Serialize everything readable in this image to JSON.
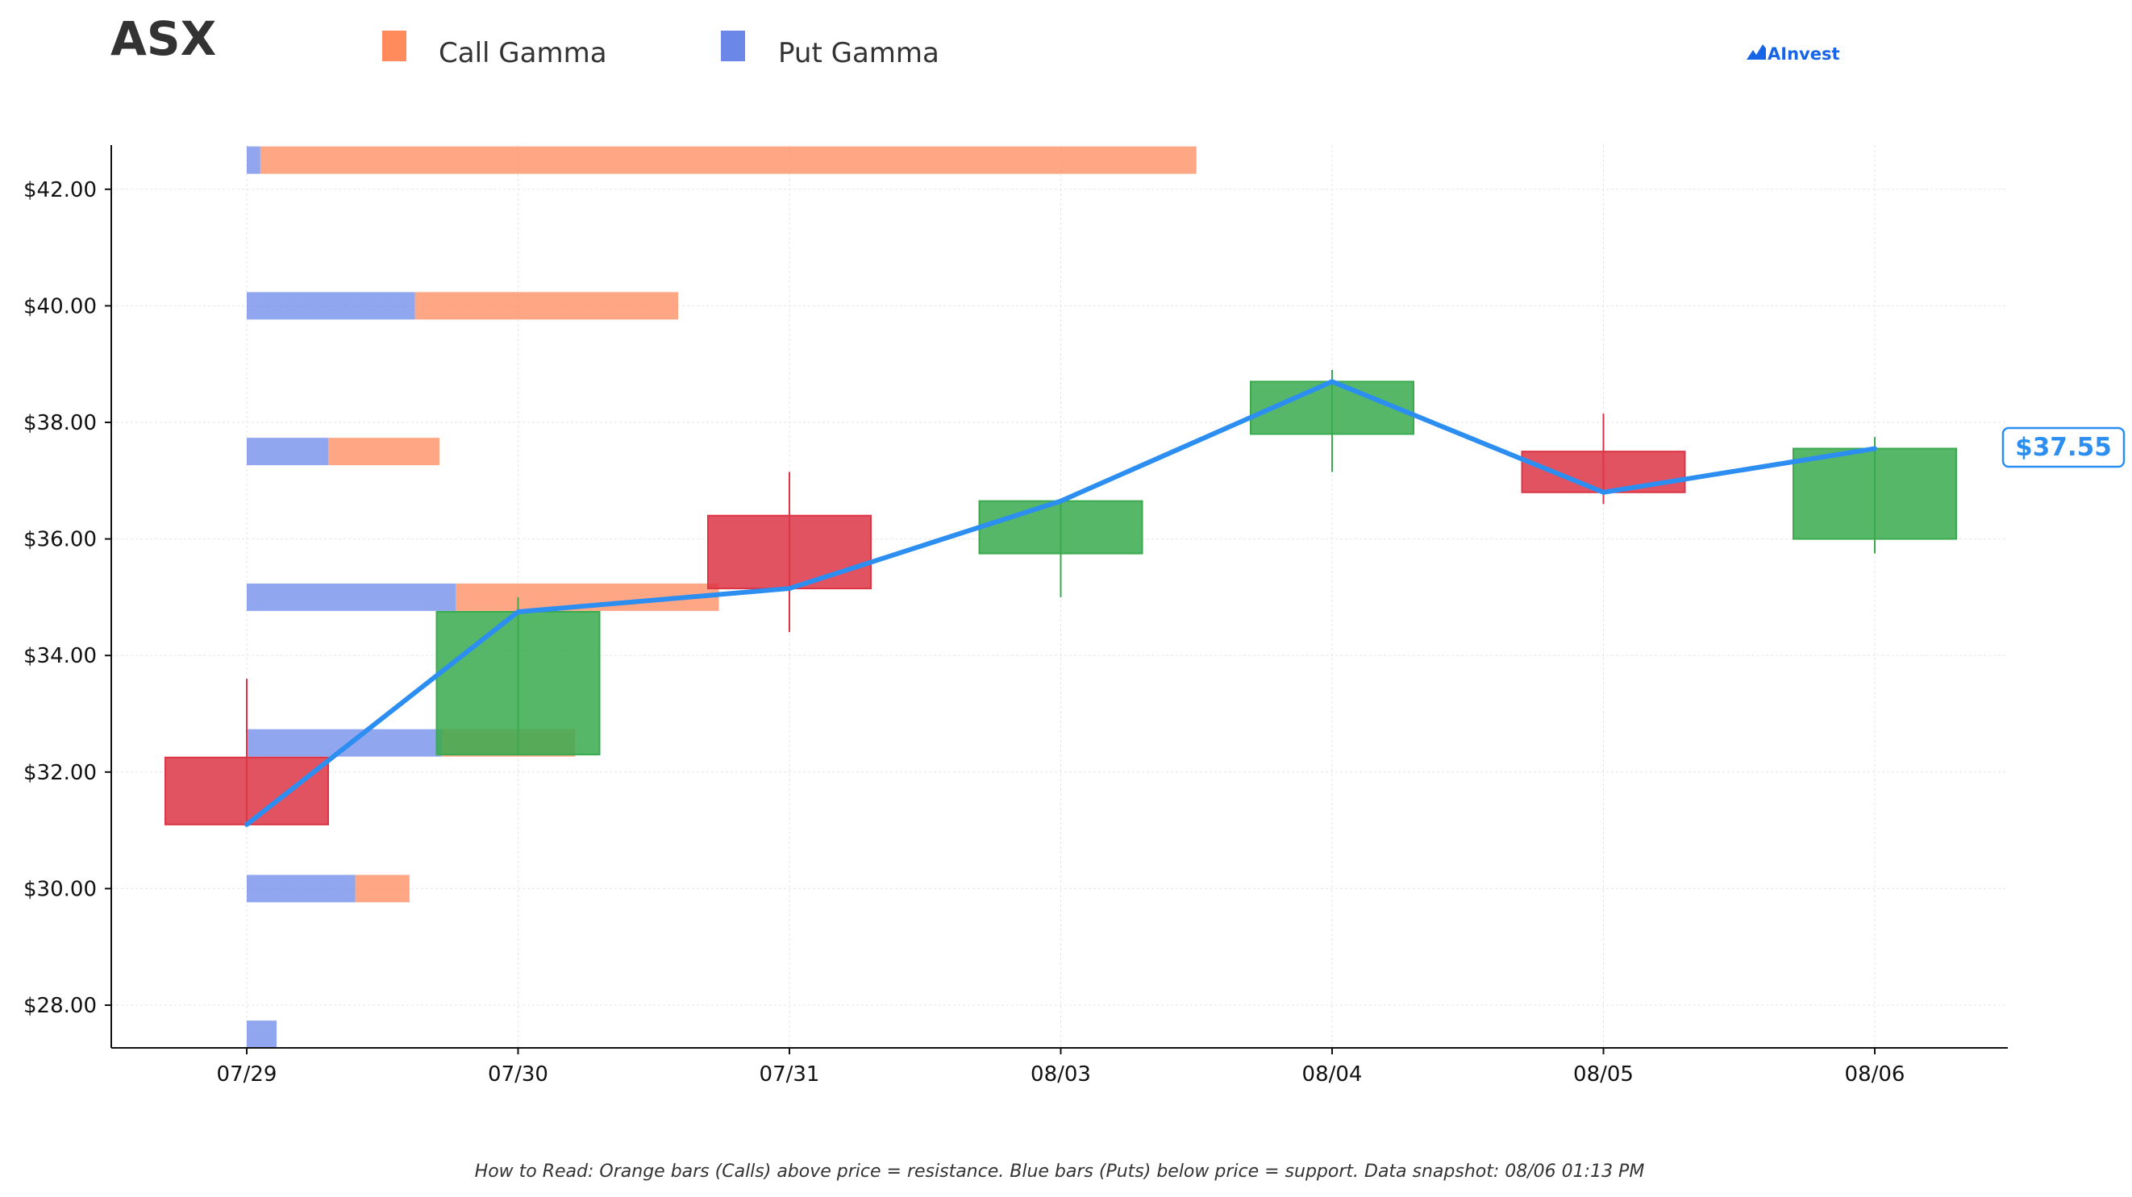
{
  "header": {
    "ticker": "ASX",
    "brand": "AInvest"
  },
  "legend": {
    "call_label": "Call Gamma",
    "put_label": "Put Gamma",
    "call_color": "#ff8a5c",
    "put_color": "#6b88e8"
  },
  "footer": {
    "note": "How to Read: Orange bars (Calls) above price = resistance. Blue bars (Puts) below price = support. Data snapshot: 08/06 01:13 PM"
  },
  "chart_data": {
    "type": "candlestick",
    "categories": [
      "07/29",
      "07/30",
      "07/31",
      "08/03",
      "08/04",
      "08/05",
      "08/06"
    ],
    "ylim": [
      27.25,
      42.75
    ],
    "yticks": [
      28,
      30,
      32,
      34,
      36,
      38,
      40,
      42
    ],
    "ytick_labels": [
      "$28.00",
      "$30.00",
      "$32.00",
      "$34.00",
      "$36.00",
      "$38.00",
      "$40.00",
      "$42.00"
    ],
    "grid": true,
    "candles": [
      {
        "date": "07/29",
        "open": 32.25,
        "high": 33.6,
        "low": 31.1,
        "close": 31.1
      },
      {
        "date": "07/30",
        "open": 32.3,
        "high": 35.0,
        "low": 32.3,
        "close": 34.75
      },
      {
        "date": "07/31",
        "open": 36.4,
        "high": 37.15,
        "low": 34.4,
        "close": 35.15
      },
      {
        "date": "08/03",
        "open": 35.75,
        "high": 36.65,
        "low": 35.0,
        "close": 36.65
      },
      {
        "date": "08/04",
        "open": 37.8,
        "high": 38.9,
        "low": 37.15,
        "close": 38.7
      },
      {
        "date": "08/05",
        "open": 37.5,
        "high": 38.15,
        "low": 36.6,
        "close": 36.8
      },
      {
        "date": "08/06",
        "open": 36.0,
        "high": 37.75,
        "low": 35.75,
        "close": 37.55
      }
    ],
    "close_line": {
      "x": [
        "07/29",
        "07/30",
        "07/31",
        "08/03",
        "08/04",
        "08/05",
        "08/06"
      ],
      "y": [
        31.1,
        34.75,
        35.15,
        36.65,
        38.7,
        36.8,
        37.55
      ],
      "color": "#2b8ef0"
    },
    "gamma_bars": [
      {
        "strike": 42.5,
        "put": 0.05,
        "call": 3.45
      },
      {
        "strike": 40.0,
        "put": 0.62,
        "call": 0.97
      },
      {
        "strike": 37.5,
        "put": 0.3,
        "call": 0.41
      },
      {
        "strike": 35.0,
        "put": 0.77,
        "call": 0.97
      },
      {
        "strike": 32.5,
        "put": 0.72,
        "call": 0.49
      },
      {
        "strike": 30.0,
        "put": 0.4,
        "call": 0.2
      },
      {
        "strike": 27.5,
        "put": 0.11,
        "call": 0.0
      }
    ],
    "up_color": "#3aaa4f",
    "down_color": "#dc3545",
    "current_price_label": "$37.55"
  }
}
